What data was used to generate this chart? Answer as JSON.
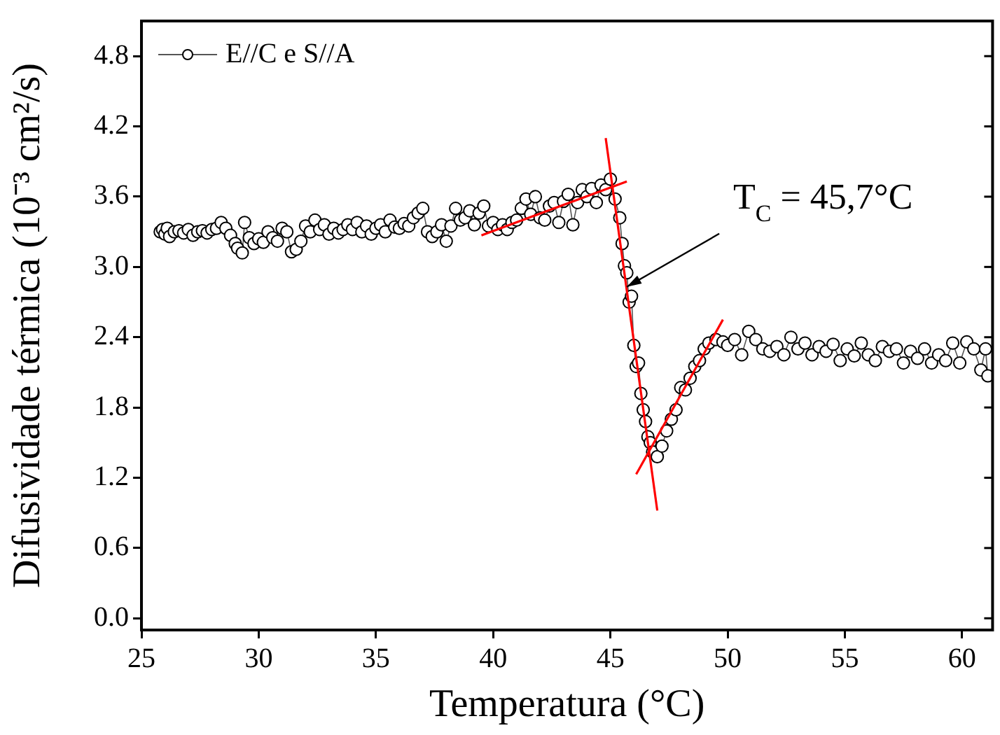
{
  "chart_data": {
    "type": "line",
    "xlabel": "Temperatura (°C)",
    "ylabel": "Difusividade térmica (10⁻³ cm²/s)",
    "xlim": [
      25,
      61.3
    ],
    "xticks": [
      25,
      30,
      35,
      40,
      45,
      50,
      55,
      60
    ],
    "ylim": [
      -0.1,
      5.1
    ],
    "yticks": [
      {
        "value": 0,
        "label": "0.0"
      },
      {
        "value": 0.6,
        "label": "0.6"
      },
      {
        "value": 1.2,
        "label": "1.2"
      },
      {
        "value": 1.8,
        "label": "1.8"
      },
      {
        "value": 2.4,
        "label": "2.4"
      },
      {
        "value": 3,
        "label": "3.0"
      },
      {
        "value": 3.6,
        "label": "3.6"
      },
      {
        "value": 4.2,
        "label": "4.2"
      },
      {
        "value": 4.8,
        "label": "4.8"
      }
    ],
    "grid": false,
    "legend": "top left",
    "line_style": "solid",
    "annotations": [
      {
        "text": "T$_{C}$ = 45,7°C",
        "x": 45.7,
        "y": 2.83
      }
    ],
    "series": [
      {
        "name": "E//C e S//A",
        "color": "#000000",
        "marker": "circle",
        "x": [
          25.8,
          25.9,
          26.0,
          26.1,
          26.2,
          26.4,
          26.6,
          26.8,
          27.0,
          27.2,
          27.4,
          27.6,
          27.8,
          28.0,
          28.2,
          28.4,
          28.6,
          28.8,
          29.0,
          29.1,
          29.3,
          29.4,
          29.6,
          29.8,
          30.0,
          30.2,
          30.4,
          30.6,
          30.8,
          31.0,
          31.2,
          31.4,
          31.6,
          31.8,
          32.0,
          32.2,
          32.4,
          32.6,
          32.8,
          33.0,
          33.2,
          33.4,
          33.6,
          33.8,
          34.0,
          34.2,
          34.4,
          34.6,
          34.8,
          35.0,
          35.2,
          35.4,
          35.6,
          35.8,
          36.0,
          36.2,
          36.4,
          36.6,
          36.8,
          37.0,
          37.2,
          37.4,
          37.6,
          37.8,
          38.0,
          38.2,
          38.4,
          38.6,
          38.8,
          39.0,
          39.2,
          39.4,
          39.6,
          39.8,
          40.0,
          40.2,
          40.4,
          40.6,
          40.8,
          41.0,
          41.2,
          41.4,
          41.6,
          41.8,
          42.0,
          42.2,
          42.4,
          42.6,
          42.8,
          43.0,
          43.2,
          43.4,
          43.6,
          43.8,
          44.0,
          44.2,
          44.4,
          44.6,
          44.8,
          45.0,
          45.2,
          45.4,
          45.5,
          45.6,
          45.7,
          45.8,
          45.9,
          46.0,
          46.1,
          46.2,
          46.3,
          46.4,
          46.5,
          46.6,
          46.7,
          46.8,
          47.0,
          47.2,
          47.4,
          47.6,
          47.8,
          48.0,
          48.2,
          48.4,
          48.6,
          48.8,
          49.0,
          49.2,
          49.5,
          49.8,
          50.0,
          50.3,
          50.6,
          50.9,
          51.2,
          51.5,
          51.8,
          52.1,
          52.4,
          52.7,
          53.0,
          53.3,
          53.6,
          53.9,
          54.2,
          54.5,
          54.8,
          55.1,
          55.4,
          55.7,
          56.0,
          56.3,
          56.6,
          56.9,
          57.2,
          57.5,
          57.8,
          58.1,
          58.4,
          58.7,
          59.0,
          59.3,
          59.6,
          59.9,
          60.2,
          60.5,
          60.8,
          61.0,
          61.1
        ],
        "values": [
          3.3,
          3.32,
          3.28,
          3.33,
          3.26,
          3.3,
          3.31,
          3.29,
          3.32,
          3.27,
          3.3,
          3.31,
          3.29,
          3.32,
          3.33,
          3.38,
          3.33,
          3.27,
          3.2,
          3.16,
          3.12,
          3.38,
          3.25,
          3.2,
          3.24,
          3.21,
          3.3,
          3.25,
          3.22,
          3.33,
          3.3,
          3.13,
          3.15,
          3.22,
          3.35,
          3.3,
          3.4,
          3.32,
          3.36,
          3.28,
          3.33,
          3.29,
          3.32,
          3.36,
          3.32,
          3.38,
          3.3,
          3.35,
          3.28,
          3.33,
          3.36,
          3.3,
          3.4,
          3.34,
          3.33,
          3.37,
          3.35,
          3.42,
          3.46,
          3.5,
          3.3,
          3.26,
          3.3,
          3.36,
          3.22,
          3.35,
          3.5,
          3.4,
          3.42,
          3.48,
          3.36,
          3.46,
          3.52,
          3.35,
          3.38,
          3.32,
          3.36,
          3.32,
          3.38,
          3.4,
          3.5,
          3.58,
          3.45,
          3.6,
          3.42,
          3.4,
          3.52,
          3.55,
          3.38,
          3.56,
          3.62,
          3.36,
          3.55,
          3.66,
          3.6,
          3.67,
          3.55,
          3.7,
          3.66,
          3.75,
          3.58,
          3.42,
          3.2,
          3.01,
          2.95,
          2.7,
          2.75,
          2.33,
          2.15,
          2.18,
          1.92,
          1.78,
          1.68,
          1.55,
          1.5,
          1.42,
          1.38,
          1.47,
          1.6,
          1.7,
          1.78,
          1.97,
          1.95,
          2.05,
          2.15,
          2.2,
          2.3,
          2.35,
          2.38,
          2.36,
          2.33,
          2.38,
          2.25,
          2.45,
          2.38,
          2.3,
          2.28,
          2.32,
          2.25,
          2.4,
          2.3,
          2.35,
          2.25,
          2.32,
          2.28,
          2.34,
          2.2,
          2.3,
          2.24,
          2.35,
          2.25,
          2.2,
          2.32,
          2.28,
          2.3,
          2.18,
          2.28,
          2.22,
          2.3,
          2.18,
          2.25,
          2.2,
          2.35,
          2.18,
          2.36,
          2.3,
          2.12,
          2.3,
          2.07
        ]
      },
      {
        "type": "line",
        "color": "#ff0000",
        "marker": "none",
        "x": [
          39.5,
          45.7
        ],
        "values": [
          3.27,
          3.73
        ]
      },
      {
        "type": "line",
        "color": "#ff0000",
        "marker": "none",
        "x": [
          44.8,
          47.0
        ],
        "values": [
          4.1,
          0.92
        ]
      },
      {
        "type": "line",
        "color": "#ff0000",
        "marker": "none",
        "x": [
          46.1,
          49.8
        ],
        "values": [
          1.23,
          2.55
        ]
      }
    ]
  }
}
